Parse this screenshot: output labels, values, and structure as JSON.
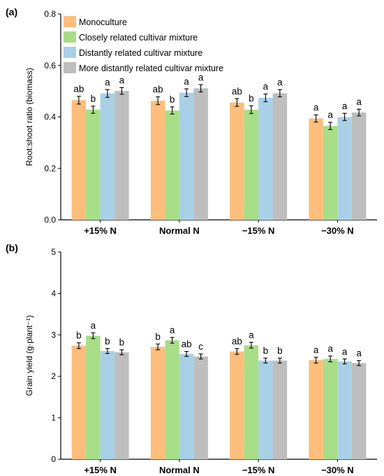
{
  "colors": {
    "Monoculture": "#FDBE7B",
    "Closely related cultivar mixture": "#A8DE87",
    "Distantly related cultivar mixture": "#A9D0E6",
    "More distantly related cultivar mixture": "#BEBEBE"
  },
  "chart_data": [
    {
      "type": "bar",
      "panel_label": "(a)",
      "ylabel": "Root:shoot ratio (biomass)",
      "xlabel": "",
      "ylim": [
        0,
        0.8
      ],
      "yticks": [
        "0.0",
        "0.2",
        "0.4",
        "0.6",
        "0.8"
      ],
      "ytick_values": [
        0,
        0.2,
        0.4,
        0.6,
        0.8
      ],
      "categories": [
        "+15% N",
        "Normal N",
        "−15% N",
        "−30% N"
      ],
      "legend_position": "top-left",
      "series": [
        {
          "name": "Monoculture",
          "values": [
            0.465,
            0.463,
            0.456,
            0.394
          ],
          "errors": [
            0.015,
            0.015,
            0.015,
            0.014
          ],
          "letters": [
            "ab",
            "ab",
            "ab",
            "a"
          ]
        },
        {
          "name": "Closely related cultivar mixture",
          "values": [
            0.428,
            0.425,
            0.428,
            0.365
          ],
          "errors": [
            0.014,
            0.014,
            0.015,
            0.014
          ],
          "letters": [
            "b",
            "b",
            "b",
            "a"
          ]
        },
        {
          "name": "Distantly related cultivar mixture",
          "values": [
            0.491,
            0.494,
            0.474,
            0.4
          ],
          "errors": [
            0.015,
            0.015,
            0.015,
            0.014
          ],
          "letters": [
            "a",
            "a",
            "a",
            "a"
          ]
        },
        {
          "name": "More distantly related cultivar mixture",
          "values": [
            0.501,
            0.511,
            0.492,
            0.417
          ],
          "errors": [
            0.013,
            0.014,
            0.014,
            0.013
          ],
          "letters": [
            "a",
            "a",
            "a",
            "a"
          ]
        }
      ]
    },
    {
      "type": "bar",
      "panel_label": "(b)",
      "ylabel": "Grain yield (g·plant⁻¹)",
      "xlabel": "",
      "ylim": [
        0,
        5
      ],
      "yticks": [
        "0",
        "1",
        "2",
        "3",
        "4",
        "5"
      ],
      "ytick_values": [
        0,
        1,
        2,
        3,
        4,
        5
      ],
      "categories": [
        "+15% N",
        "Normal N",
        "−15% N",
        "−30% N"
      ],
      "series": [
        {
          "name": "Monoculture",
          "values": [
            2.74,
            2.71,
            2.6,
            2.39
          ],
          "errors": [
            0.07,
            0.07,
            0.07,
            0.07
          ],
          "letters": [
            "b",
            "b",
            "ab",
            "a"
          ]
        },
        {
          "name": "Closely related cultivar mixture",
          "values": [
            2.98,
            2.87,
            2.75,
            2.42
          ],
          "errors": [
            0.07,
            0.07,
            0.07,
            0.07
          ],
          "letters": [
            "a",
            "a",
            "a",
            "a"
          ]
        },
        {
          "name": "Distantly related cultivar mixture",
          "values": [
            2.61,
            2.54,
            2.38,
            2.36
          ],
          "errors": [
            0.06,
            0.06,
            0.06,
            0.06
          ],
          "letters": [
            "b",
            "ab",
            "b",
            "a"
          ]
        },
        {
          "name": "More distantly related cultivar mixture",
          "values": [
            2.58,
            2.48,
            2.38,
            2.32
          ],
          "errors": [
            0.06,
            0.06,
            0.06,
            0.06
          ],
          "letters": [
            "b",
            "c",
            "b",
            "a"
          ]
        }
      ]
    }
  ]
}
